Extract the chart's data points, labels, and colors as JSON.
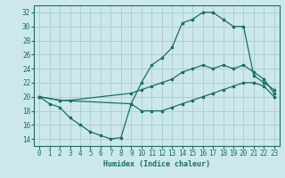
{
  "xlabel": "Humidex (Indice chaleur)",
  "bg_color": "#cce8ec",
  "grid_color": "#aed0d4",
  "line_color": "#1a6e64",
  "xlim": [
    -0.5,
    23.5
  ],
  "ylim": [
    13,
    33
  ],
  "xticks": [
    0,
    1,
    2,
    3,
    4,
    5,
    6,
    7,
    8,
    9,
    10,
    11,
    12,
    13,
    14,
    15,
    16,
    17,
    18,
    19,
    20,
    21,
    22,
    23
  ],
  "yticks": [
    14,
    16,
    18,
    20,
    22,
    24,
    26,
    28,
    30,
    32
  ],
  "line_bottom": {
    "x": [
      0,
      1,
      2,
      3,
      4,
      5,
      6,
      7,
      8,
      9,
      10,
      11,
      12,
      13,
      14,
      15,
      16,
      17,
      18,
      19,
      20,
      21,
      22,
      23
    ],
    "y": [
      20,
      19,
      18.5,
      17,
      16,
      15,
      14.5,
      14,
      14.2,
      19,
      18,
      18,
      18,
      18.5,
      19,
      19.5,
      20,
      20.5,
      21,
      21.5,
      22,
      22,
      21.5,
      20
    ]
  },
  "line_mid": {
    "x": [
      0,
      2,
      3,
      9,
      10,
      11,
      12,
      13,
      14,
      15,
      16,
      17,
      18,
      19,
      20,
      21,
      22,
      23
    ],
    "y": [
      20,
      19.5,
      19.5,
      20.5,
      21,
      21.5,
      22,
      22.5,
      23.5,
      24,
      24.5,
      24,
      24.5,
      24,
      24.5,
      23.5,
      22.5,
      20.5
    ]
  },
  "line_top": {
    "x": [
      0,
      2,
      9,
      10,
      11,
      12,
      13,
      14,
      15,
      16,
      17,
      18,
      19,
      20,
      21,
      22,
      23
    ],
    "y": [
      20,
      19.5,
      19,
      22,
      24.5,
      25.5,
      27,
      30.5,
      31,
      32,
      32,
      31,
      30,
      30,
      23,
      22,
      21
    ]
  }
}
